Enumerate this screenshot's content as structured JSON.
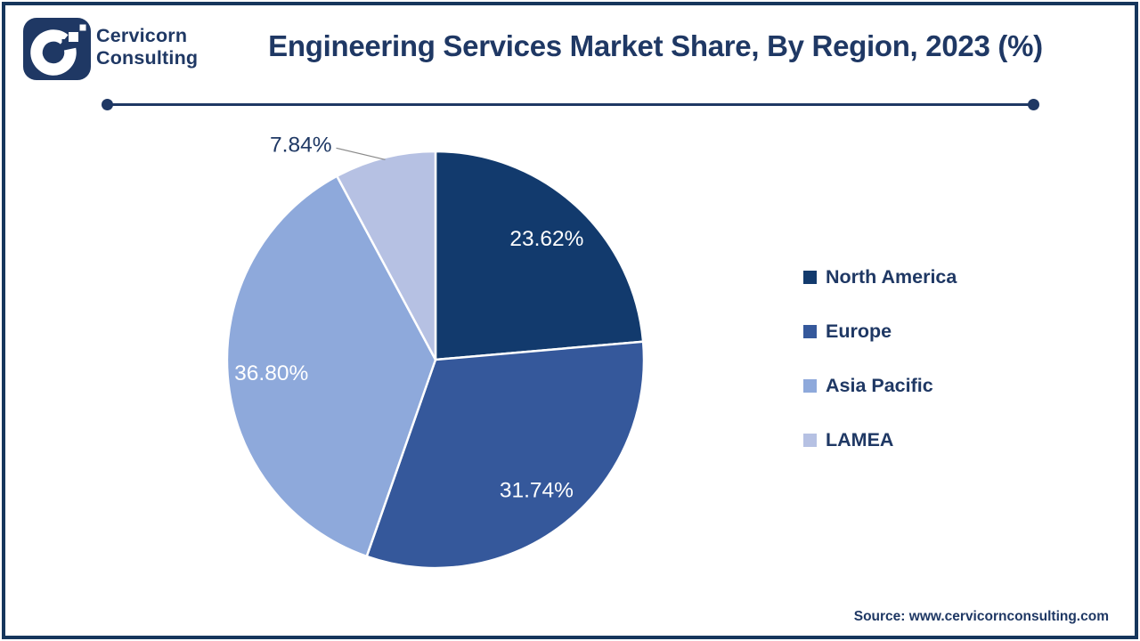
{
  "brand": {
    "line1": "Cervicorn",
    "line2": "Consulting"
  },
  "header": {
    "title": "Engineering Services Market Share, By Region, 2023 (%)"
  },
  "chart_data": {
    "type": "pie",
    "title": "Engineering Services Market Share, By Region, 2023 (%)",
    "categories": [
      "North America",
      "Europe",
      "Asia Pacific",
      "LAMEA"
    ],
    "values": [
      23.62,
      31.74,
      36.8,
      7.84
    ],
    "labels": [
      "23.62%",
      "31.74%",
      "36.80%",
      "7.84%"
    ],
    "colors": [
      "#123A6D",
      "#35589B",
      "#8EA9DB",
      "#B6C1E3"
    ],
    "start_angle_deg": 0,
    "direction": "clockwise",
    "label_placement": [
      "inside",
      "inside",
      "inside",
      "outside"
    ],
    "inside_label_color": "#FFFFFF",
    "outside_label_color": "#1F3864",
    "leader_line_color": "#8A8A8A",
    "slice_border_color": "#FFFFFF",
    "legend_position": "right"
  },
  "footer": {
    "source": "Source: www.cervicornconsulting.com"
  },
  "theme": {
    "accent": "#1F3864",
    "frame_border": "#16365C",
    "background": "#FFFFFF",
    "rule_color": "#1F3864"
  }
}
